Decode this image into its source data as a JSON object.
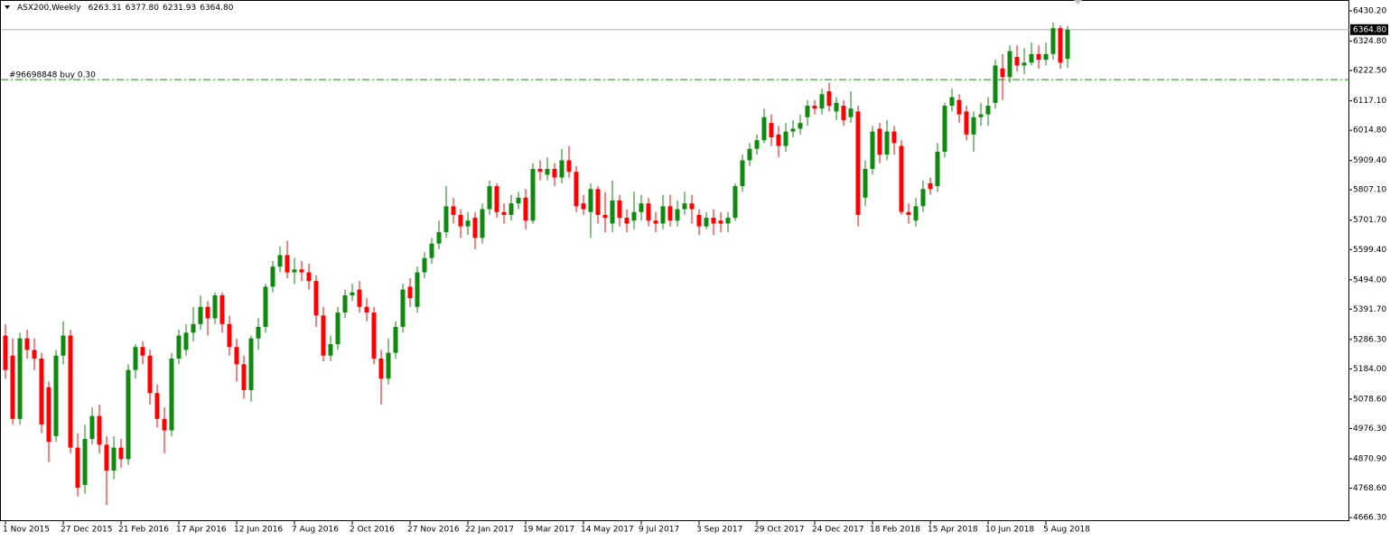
{
  "chart_data": {
    "type": "candlestick",
    "symbol": "ASX200,Weekly",
    "header_ohlc": [
      "6263.31",
      "6377.80",
      "6231.93",
      "6364.80"
    ],
    "up_color": "#0f8a0f",
    "down_color": "#ff0000",
    "categories": [
      "1 Nov 2015",
      null,
      null,
      null,
      null,
      null,
      null,
      null,
      "27 Dec 2015",
      null,
      null,
      null,
      null,
      null,
      null,
      null,
      "21 Feb 2016",
      null,
      null,
      null,
      null,
      null,
      null,
      null,
      "17 Apr 2016",
      null,
      null,
      null,
      null,
      null,
      null,
      null,
      "12 Jun 2016",
      null,
      null,
      null,
      null,
      null,
      null,
      null,
      "7 Aug 2016",
      null,
      null,
      null,
      null,
      null,
      null,
      null,
      "2 Oct 2016",
      null,
      null,
      null,
      null,
      null,
      null,
      null,
      "27 Nov 2016",
      null,
      null,
      null,
      null,
      null,
      null,
      null,
      "22 Jan 2017",
      null,
      null,
      null,
      null,
      null,
      null,
      null,
      "19 Mar 2017",
      null,
      null,
      null,
      null,
      null,
      null,
      null,
      "14 May 2017",
      null,
      null,
      null,
      null,
      null,
      null,
      null,
      "9 Jul 2017",
      null,
      null,
      null,
      null,
      null,
      null,
      null,
      "3 Sep 2017",
      null,
      null,
      null,
      null,
      null,
      null,
      null,
      "29 Oct 2017",
      null,
      null,
      null,
      null,
      null,
      null,
      null,
      "24 Dec 2017",
      null,
      null,
      null,
      null,
      null,
      null,
      null,
      "18 Feb 2018",
      null,
      null,
      null,
      null,
      null,
      null,
      null,
      "15 Apr 2018",
      null,
      null,
      null,
      null,
      null,
      null,
      null,
      "10 Jun 2018",
      null,
      null,
      null,
      null,
      null,
      null,
      null,
      "5 Aug 2018",
      null,
      null,
      null
    ],
    "open": [
      5300,
      5230,
      5010,
      5290,
      5250,
      5220,
      5120,
      4950,
      5230,
      5300,
      4910,
      4780,
      4940,
      5020,
      4920,
      4830,
      4910,
      4870,
      5180,
      5260,
      5230,
      5100,
      5010,
      4970,
      5220,
      5250,
      5310,
      5340,
      5400,
      5360,
      5440,
      5340,
      5260,
      5200,
      5110,
      5290,
      5330,
      5470,
      5540,
      5580,
      5520,
      5530,
      5520,
      5490,
      5370,
      5230,
      5270,
      5380,
      5440,
      5460,
      5400,
      5380,
      5220,
      5150,
      5240,
      5330,
      5470,
      5400,
      5520,
      5570,
      5620,
      5660,
      5750,
      5720,
      5680,
      5710,
      5640,
      5740,
      5820,
      5730,
      5720,
      5760,
      5780,
      5700,
      5880,
      5860,
      5880,
      5850,
      5910,
      5870,
      5760,
      5730,
      5810,
      5720,
      5690,
      5770,
      5710,
      5700,
      5730,
      5760,
      5700,
      5690,
      5750,
      5700,
      5740,
      5760,
      5720,
      5680,
      5710,
      5700,
      5690,
      5710,
      5820,
      5910,
      5950,
      5980,
      6040,
      6000,
      5960,
      6010,
      6020,
      6060,
      6100,
      6090,
      6150,
      6080,
      6100,
      6060,
      6080,
      5780,
      5880,
      6020,
      5930,
      6010,
      5960,
      5730,
      5700,
      5750,
      5830,
      5820,
      5940,
      6100,
      6120,
      6080,
      6000,
      6060,
      6070,
      6110,
      6230,
      6200,
      6270,
      6240,
      6250,
      6280,
      6260,
      6280,
      6370,
      6263.31
    ],
    "high": [
      5340,
      5290,
      5310,
      5320,
      5290,
      5240,
      5140,
      5250,
      5350,
      5320,
      4960,
      4990,
      5050,
      5060,
      4950,
      4950,
      4940,
      5200,
      5270,
      5280,
      5250,
      5130,
      5050,
      5240,
      5320,
      5340,
      5400,
      5440,
      5420,
      5450,
      5450,
      5370,
      5290,
      5230,
      5300,
      5360,
      5480,
      5560,
      5610,
      5630,
      5570,
      5560,
      5550,
      5510,
      5400,
      5300,
      5400,
      5460,
      5480,
      5490,
      5430,
      5400,
      5250,
      5290,
      5350,
      5480,
      5500,
      5540,
      5590,
      5640,
      5700,
      5820,
      5780,
      5740,
      5730,
      5730,
      5760,
      5840,
      5830,
      5760,
      5790,
      5800,
      5810,
      5900,
      5910,
      5920,
      5900,
      5950,
      5960,
      5890,
      5790,
      5830,
      5820,
      5800,
      5840,
      5790,
      5740,
      5800,
      5790,
      5780,
      5730,
      5790,
      5790,
      5770,
      5800,
      5790,
      5740,
      5730,
      5740,
      5730,
      5730,
      5830,
      5930,
      5970,
      6000,
      6090,
      6070,
      6030,
      6040,
      6050,
      6070,
      6120,
      6120,
      6160,
      6180,
      6130,
      6120,
      6150,
      6100,
      5910,
      6030,
      6040,
      6050,
      6030,
      5980,
      5760,
      5780,
      5840,
      5850,
      5970,
      6110,
      6160,
      6140,
      6100,
      6080,
      6110,
      6130,
      6260,
      6280,
      6310,
      6310,
      6300,
      6320,
      6310,
      6320,
      6390,
      6380,
      6377.8
    ],
    "low": [
      5150,
      4990,
      4990,
      5220,
      5180,
      4960,
      4860,
      4930,
      5200,
      4890,
      4740,
      4750,
      4920,
      4890,
      4710,
      4800,
      4840,
      4850,
      5150,
      5200,
      5060,
      4980,
      4890,
      4950,
      5200,
      5230,
      5280,
      5320,
      5300,
      5340,
      5310,
      5230,
      5140,
      5080,
      5070,
      5250,
      5310,
      5450,
      5520,
      5500,
      5480,
      5490,
      5460,
      5330,
      5210,
      5210,
      5250,
      5360,
      5420,
      5380,
      5350,
      5200,
      5060,
      5130,
      5220,
      5310,
      5400,
      5380,
      5500,
      5550,
      5600,
      5640,
      5690,
      5640,
      5650,
      5600,
      5620,
      5720,
      5710,
      5690,
      5700,
      5740,
      5670,
      5690,
      5840,
      5840,
      5820,
      5830,
      5850,
      5730,
      5720,
      5640,
      5690,
      5660,
      5660,
      5680,
      5660,
      5670,
      5700,
      5680,
      5660,
      5670,
      5680,
      5680,
      5720,
      5690,
      5650,
      5670,
      5650,
      5660,
      5660,
      5700,
      5800,
      5890,
      5930,
      5970,
      5960,
      5920,
      5940,
      5990,
      6000,
      6030,
      6070,
      6070,
      6080,
      6050,
      6030,
      6040,
      5680,
      5750,
      5860,
      5900,
      5910,
      5930,
      5720,
      5690,
      5680,
      5730,
      5790,
      5800,
      5920,
      6080,
      6040,
      5980,
      5940,
      6030,
      6030,
      6090,
      6120,
      6180,
      6220,
      6210,
      6240,
      6230,
      6240,
      6260,
      6230,
      6231.93
    ],
    "close": [
      5180,
      5010,
      5290,
      5250,
      5220,
      4990,
      4930,
      5230,
      5300,
      4910,
      4770,
      4940,
      5020,
      4920,
      4830,
      4910,
      4870,
      5180,
      5260,
      5230,
      5100,
      5010,
      4970,
      5220,
      5300,
      5310,
      5340,
      5400,
      5360,
      5440,
      5340,
      5260,
      5200,
      5110,
      5290,
      5330,
      5470,
      5540,
      5580,
      5520,
      5530,
      5520,
      5490,
      5370,
      5230,
      5270,
      5380,
      5440,
      5450,
      5400,
      5380,
      5220,
      5150,
      5240,
      5330,
      5460,
      5430,
      5520,
      5570,
      5620,
      5660,
      5750,
      5720,
      5680,
      5700,
      5640,
      5740,
      5820,
      5730,
      5720,
      5760,
      5780,
      5700,
      5880,
      5870,
      5880,
      5850,
      5910,
      5870,
      5750,
      5740,
      5810,
      5720,
      5710,
      5770,
      5710,
      5690,
      5730,
      5760,
      5700,
      5690,
      5750,
      5700,
      5740,
      5760,
      5740,
      5680,
      5710,
      5690,
      5690,
      5710,
      5820,
      5910,
      5950,
      5980,
      6060,
      5990,
      5960,
      6010,
      6020,
      6040,
      6100,
      6090,
      6140,
      6100,
      6110,
      6050,
      6090,
      5720,
      5880,
      6010,
      5930,
      6010,
      5970,
      5730,
      5720,
      5750,
      5810,
      5810,
      5940,
      6100,
      6130,
      6070,
      6000,
      6060,
      6070,
      6100,
      6240,
      6200,
      6290,
      6240,
      6250,
      6280,
      6260,
      6280,
      6370,
      6250,
      6364.8
    ],
    "ylim": [
      4654,
      6468
    ],
    "yticks": [
      {
        "value": 6430.2,
        "label": "6430.20"
      },
      {
        "value": 6324.8,
        "label": "6324.80"
      },
      {
        "value": 6222.5,
        "label": "6222.50"
      },
      {
        "value": 6117.1,
        "label": "6117.10"
      },
      {
        "value": 6014.8,
        "label": "6014.80"
      },
      {
        "value": 5909.4,
        "label": "5909.40"
      },
      {
        "value": 5807.1,
        "label": "5807.10"
      },
      {
        "value": 5701.7,
        "label": "5701.70"
      },
      {
        "value": 5599.4,
        "label": "5599.40"
      },
      {
        "value": 5494.0,
        "label": "5494.00"
      },
      {
        "value": 5391.7,
        "label": "5391.70"
      },
      {
        "value": 5286.3,
        "label": "5286.30"
      },
      {
        "value": 5184.0,
        "label": "5184.00"
      },
      {
        "value": 5078.6,
        "label": "5078.60"
      },
      {
        "value": 4976.3,
        "label": "4976.30"
      },
      {
        "value": 4870.9,
        "label": "4870.90"
      },
      {
        "value": 4768.6,
        "label": "4768.60"
      },
      {
        "value": 4666.3,
        "label": "4666.30"
      }
    ],
    "last_price": {
      "value": 6364.8,
      "label": "6364.80"
    },
    "order_line": {
      "label": "#96698848 buy 0.30",
      "price": 6191,
      "color": "#0f8a0f"
    }
  }
}
